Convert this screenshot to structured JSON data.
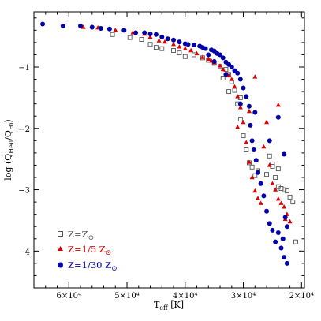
{
  "chart_data": {
    "type": "scatter",
    "title": "",
    "xlabel": {
      "main": "T",
      "sub": "eff",
      "unit": " [K]"
    },
    "ylabel": {
      "prefix": "log (Q",
      "sub1": "Heii",
      "mid": "/Q",
      "sub2": "Hi",
      "suffix": ")"
    },
    "x_reversed": true,
    "xlim": [
      66000,
      19500
    ],
    "ylim": [
      -4.6,
      -0.1
    ],
    "x_ticks": [
      {
        "value": 60000,
        "label": "6×10⁴"
      },
      {
        "value": 50000,
        "label": "5×10⁴"
      },
      {
        "value": 40000,
        "label": "4×10⁴"
      },
      {
        "value": 30000,
        "label": "3×10⁴"
      },
      {
        "value": 20000,
        "label": "2×10⁴"
      }
    ],
    "y_ticks": [
      {
        "value": -1,
        "label": "−1"
      },
      {
        "value": -2,
        "label": "−2"
      },
      {
        "value": -3,
        "label": "−3"
      },
      {
        "value": -4,
        "label": "−4"
      }
    ],
    "grid": false,
    "legend_position": "bottom-left",
    "series": [
      {
        "name": "Z=Z",
        "name_symbol": "⊙",
        "marker": "open-square",
        "color": "#555555",
        "points": [
          [
            52500,
            -0.47
          ],
          [
            49500,
            -0.52
          ],
          [
            47500,
            -0.55
          ],
          [
            46000,
            -0.63
          ],
          [
            45000,
            -0.68
          ],
          [
            44000,
            -0.7
          ],
          [
            42000,
            -0.73
          ],
          [
            41000,
            -0.77
          ],
          [
            40000,
            -0.83
          ],
          [
            38500,
            -0.8
          ],
          [
            37000,
            -0.85
          ],
          [
            36000,
            -0.89
          ],
          [
            35000,
            -0.94
          ],
          [
            34000,
            -0.99
          ],
          [
            33000,
            -1.04
          ],
          [
            32500,
            -1.12
          ],
          [
            32000,
            -1.24
          ],
          [
            31500,
            -1.38
          ],
          [
            31000,
            -1.6
          ],
          [
            30500,
            -1.85
          ],
          [
            30000,
            -2.12
          ],
          [
            29500,
            -2.35
          ],
          [
            29000,
            -2.56
          ],
          [
            28500,
            -2.63
          ],
          [
            28000,
            -2.77
          ],
          [
            27500,
            -2.69
          ],
          [
            32500,
            -1.4
          ],
          [
            25500,
            -2.45
          ],
          [
            25000,
            -2.62
          ],
          [
            26000,
            -2.75
          ],
          [
            24500,
            -2.8
          ],
          [
            24000,
            -2.95
          ],
          [
            23500,
            -2.98
          ],
          [
            23000,
            -3.0
          ],
          [
            22500,
            -3.02
          ],
          [
            22000,
            -3.12
          ],
          [
            25000,
            -2.58
          ],
          [
            24000,
            -2.66
          ],
          [
            21500,
            -3.2
          ],
          [
            21000,
            -3.85
          ],
          [
            33500,
            -1.18
          ],
          [
            30500,
            -1.5
          ]
        ]
      },
      {
        "name": "Z=1/5 Z",
        "name_symbol": "⊙",
        "marker": "filled-triangle",
        "color": "#dd0000",
        "points": [
          [
            57500,
            -0.35
          ],
          [
            55000,
            -0.36
          ],
          [
            52000,
            -0.4
          ],
          [
            49000,
            -0.44
          ],
          [
            47000,
            -0.46
          ],
          [
            46000,
            -0.51
          ],
          [
            44500,
            -0.57
          ],
          [
            43500,
            -0.59
          ],
          [
            42000,
            -0.63
          ],
          [
            41000,
            -0.67
          ],
          [
            40000,
            -0.7
          ],
          [
            39000,
            -0.73
          ],
          [
            38000,
            -0.78
          ],
          [
            37000,
            -0.84
          ],
          [
            36000,
            -0.87
          ],
          [
            35500,
            -0.9
          ],
          [
            35000,
            -0.93
          ],
          [
            34000,
            -0.98
          ],
          [
            33500,
            -1.04
          ],
          [
            33000,
            -1.1
          ],
          [
            32500,
            -1.14
          ],
          [
            32000,
            -1.2
          ],
          [
            31500,
            -1.32
          ],
          [
            31000,
            -1.48
          ],
          [
            30500,
            -1.66
          ],
          [
            30000,
            -1.9
          ],
          [
            29500,
            -2.23
          ],
          [
            29000,
            -2.55
          ],
          [
            28500,
            -2.8
          ],
          [
            28000,
            -3.02
          ],
          [
            27500,
            -3.14
          ],
          [
            27000,
            -3.22
          ],
          [
            26500,
            -2.3
          ],
          [
            26000,
            -1.9
          ],
          [
            25500,
            -2.6
          ],
          [
            25000,
            -2.9
          ],
          [
            24500,
            -3.0
          ],
          [
            24000,
            -3.15
          ],
          [
            23500,
            -3.22
          ],
          [
            23000,
            -3.28
          ],
          [
            22800,
            -3.48
          ],
          [
            22500,
            -3.4
          ],
          [
            22000,
            -3.52
          ],
          [
            24000,
            -1.62
          ],
          [
            29000,
            -1.72
          ],
          [
            31000,
            -1.98
          ],
          [
            28000,
            -1.16
          ]
        ]
      },
      {
        "name": "Z=1/30 Z",
        "name_symbol": "⊙",
        "marker": "filled-circle",
        "color": "#0000aa",
        "points": [
          [
            64500,
            -0.3
          ],
          [
            61000,
            -0.33
          ],
          [
            58000,
            -0.33
          ],
          [
            56000,
            -0.35
          ],
          [
            54500,
            -0.37
          ],
          [
            53000,
            -0.38
          ],
          [
            50500,
            -0.4
          ],
          [
            48500,
            -0.44
          ],
          [
            47000,
            -0.44
          ],
          [
            46000,
            -0.46
          ],
          [
            45000,
            -0.47
          ],
          [
            44000,
            -0.51
          ],
          [
            43000,
            -0.54
          ],
          [
            42000,
            -0.56
          ],
          [
            41000,
            -0.59
          ],
          [
            40000,
            -0.62
          ],
          [
            39500,
            -0.63
          ],
          [
            38500,
            -0.64
          ],
          [
            37500,
            -0.66
          ],
          [
            37000,
            -0.68
          ],
          [
            36500,
            -0.7
          ],
          [
            35500,
            -0.72
          ],
          [
            35000,
            -0.74
          ],
          [
            34500,
            -0.78
          ],
          [
            34000,
            -0.8
          ],
          [
            33500,
            -0.85
          ],
          [
            33000,
            -0.92
          ],
          [
            32500,
            -0.96
          ],
          [
            32000,
            -1.0
          ],
          [
            31500,
            -1.06
          ],
          [
            31000,
            -1.1
          ],
          [
            30500,
            -1.2
          ],
          [
            30000,
            -1.34
          ],
          [
            29500,
            -1.48
          ],
          [
            29000,
            -1.64
          ],
          [
            28800,
            -1.95
          ],
          [
            28500,
            -2.2
          ],
          [
            28200,
            -2.35
          ],
          [
            27800,
            -2.52
          ],
          [
            27500,
            -2.72
          ],
          [
            27000,
            -2.9
          ],
          [
            26500,
            -3.1
          ],
          [
            26000,
            -3.35
          ],
          [
            25500,
            -3.55
          ],
          [
            25000,
            -3.66
          ],
          [
            24500,
            -3.85
          ],
          [
            24000,
            -3.7
          ],
          [
            23500,
            -3.95
          ],
          [
            23000,
            -4.1
          ],
          [
            22500,
            -4.2
          ],
          [
            22800,
            -3.45
          ],
          [
            23200,
            -3.8
          ],
          [
            23000,
            -2.42
          ],
          [
            24000,
            -1.82
          ],
          [
            25500,
            -2.2
          ],
          [
            28000,
            -1.74
          ],
          [
            30500,
            -1.6
          ],
          [
            33000,
            -1.12
          ],
          [
            35000,
            -0.91
          ],
          [
            36000,
            -0.8
          ],
          [
            22500,
            -3.6
          ]
        ]
      }
    ]
  }
}
